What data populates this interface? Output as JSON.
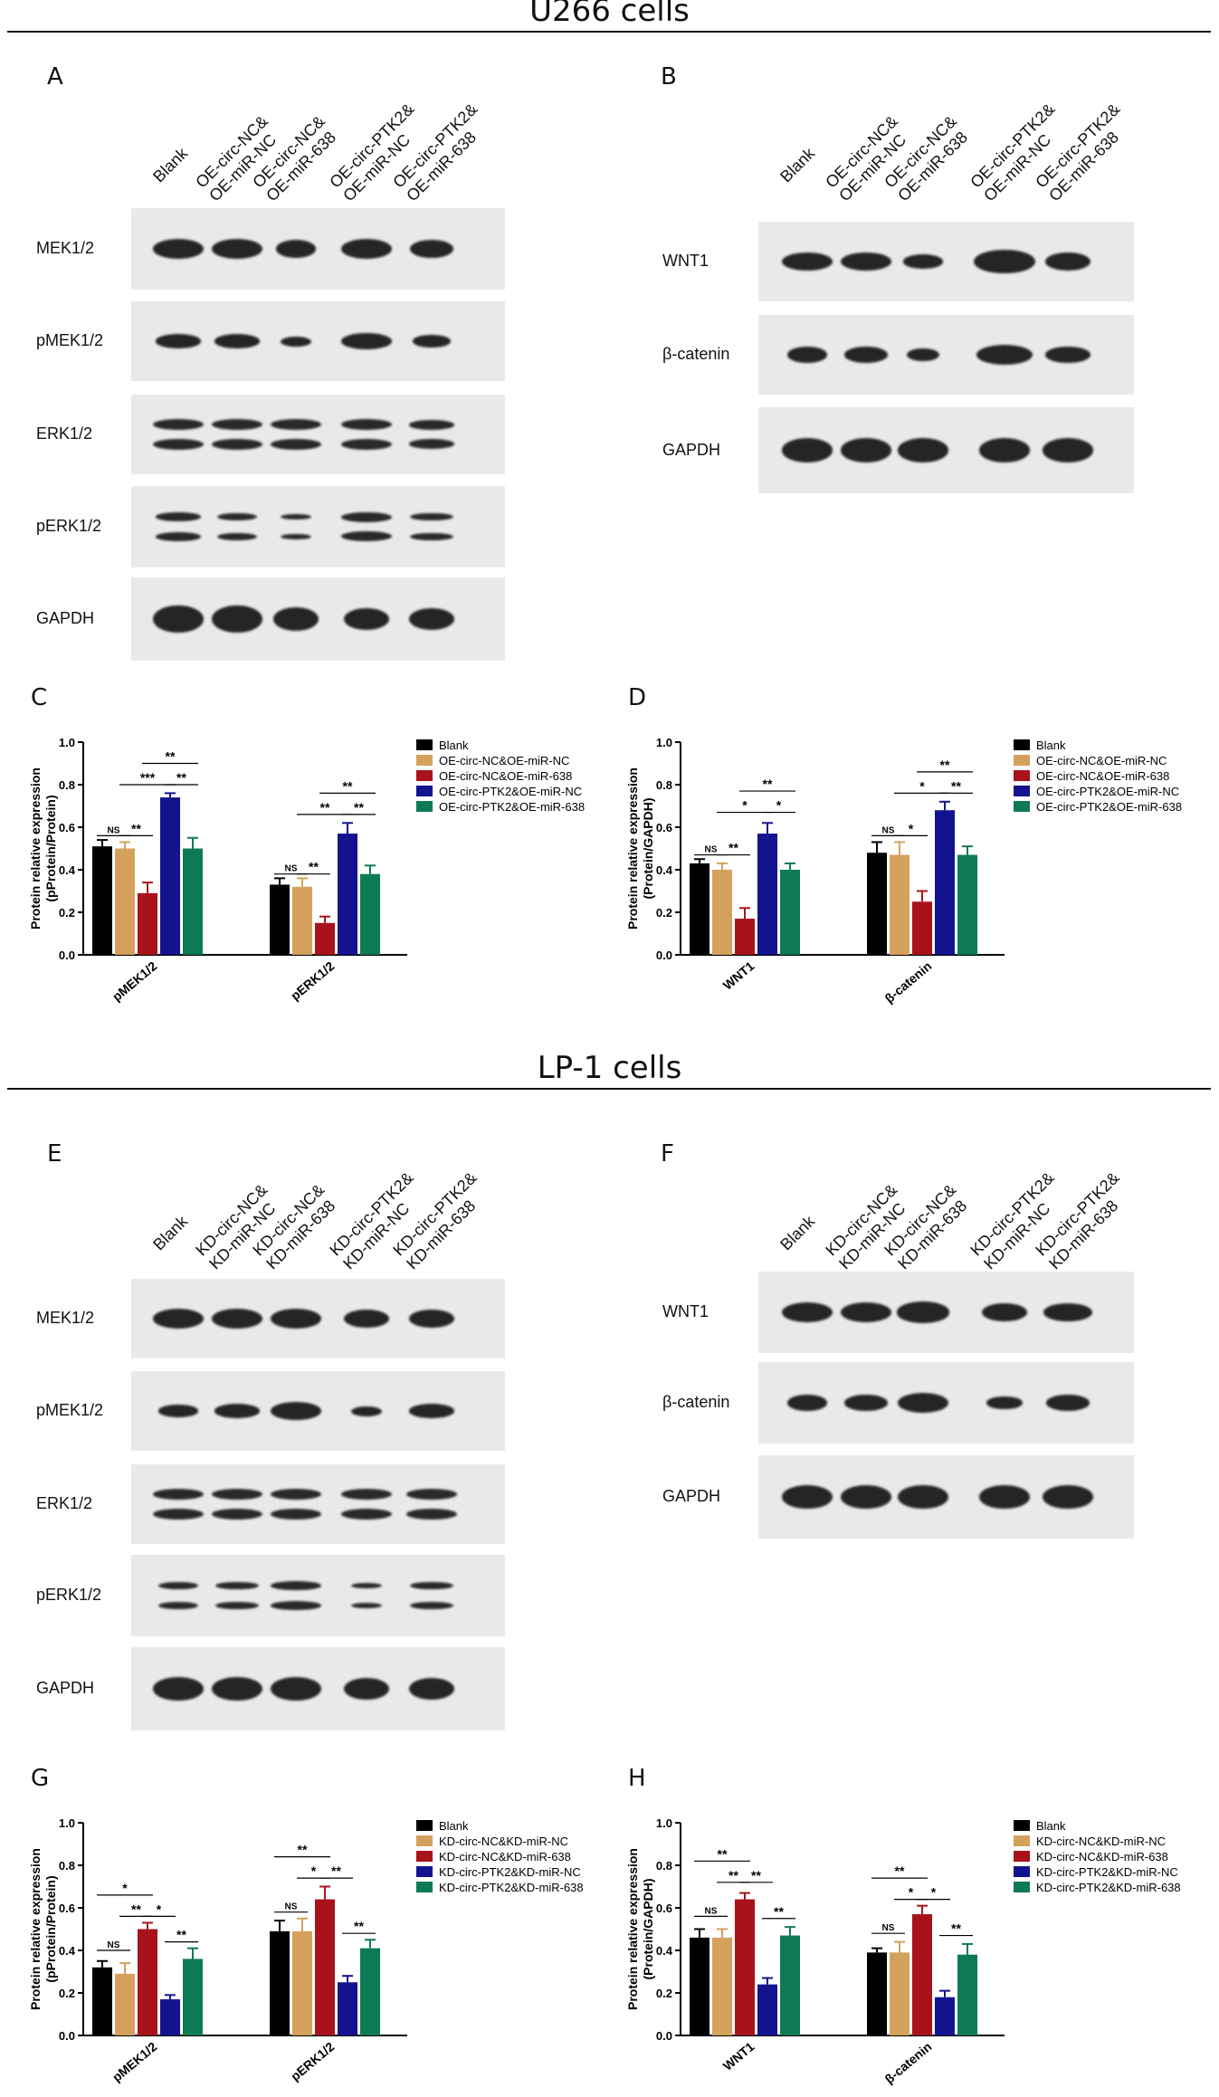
{
  "sections": [
    {
      "title": "U266 cells"
    },
    {
      "title": "LP-1 cells"
    }
  ],
  "panels": {
    "A": {
      "letter": "A",
      "lanes": [
        "Blank",
        "OE-circ-NC&\nOE-miR-NC",
        "OE-circ-NC&\nOE-miR-638",
        "OE-circ-PTK2&\nOE-miR-NC",
        "OE-circ-PTK2&\nOE-miR-638"
      ],
      "rows": [
        "MEK1/2",
        "pMEK1/2",
        "ERK1/2",
        "pERK1/2",
        "GAPDH"
      ]
    },
    "B": {
      "letter": "B",
      "lanes": [
        "Blank",
        "OE-circ-NC&\nOE-miR-NC",
        "OE-circ-NC&\nOE-miR-638",
        "OE-circ-PTK2&\nOE-miR-NC",
        "OE-circ-PTK2&\nOE-miR-638"
      ],
      "rows": [
        "WNT1",
        "β-catenin",
        "GAPDH"
      ]
    },
    "C": {
      "letter": "C"
    },
    "D": {
      "letter": "D"
    },
    "E": {
      "letter": "E",
      "lanes": [
        "Blank",
        "KD-circ-NC&\nKD-miR-NC",
        "KD-circ-NC&\nKD-miR-638",
        "KD-circ-PTK2&\nKD-miR-NC",
        "KD-circ-PTK2&\nKD-miR-638"
      ],
      "rows": [
        "MEK1/2",
        "pMEK1/2",
        "ERK1/2",
        "pERK1/2",
        "GAPDH"
      ]
    },
    "F": {
      "letter": "F",
      "lanes": [
        "Blank",
        "KD-circ-NC&\nKD-miR-NC",
        "KD-circ-NC&\nKD-miR-638",
        "KD-circ-PTK2&\nKD-miR-NC",
        "KD-circ-PTK2&\nKD-miR-638"
      ],
      "rows": [
        "WNT1",
        "β-catenin",
        "GAPDH"
      ]
    },
    "G": {
      "letter": "G"
    },
    "H": {
      "letter": "H"
    }
  },
  "colors": {
    "blank": "#000000",
    "nc_nc": "#d4a15c",
    "nc_638": "#a8131b",
    "ptk2_nc": "#14138f",
    "ptk2_638": "#0d7a55"
  },
  "chart_data": [
    {
      "id": "C",
      "type": "bar",
      "categories": [
        "pMEK1/2",
        "pERK1/2"
      ],
      "ylabel": "Protein relative expression\n(pProtein/Protein)",
      "ylim": [
        0,
        1.0
      ],
      "yticks": [
        "0.0",
        "0.2",
        "0.4",
        "0.6",
        "0.8",
        "1.0"
      ],
      "legend_position": "right",
      "series": [
        {
          "name": "Blank",
          "values": [
            0.51,
            0.33
          ],
          "errors": [
            0.03,
            0.03
          ]
        },
        {
          "name": "OE-circ-NC&OE-miR-NC",
          "values": [
            0.5,
            0.32
          ],
          "errors": [
            0.03,
            0.04
          ]
        },
        {
          "name": "OE-circ-NC&OE-miR-638",
          "values": [
            0.29,
            0.15
          ],
          "errors": [
            0.05,
            0.03
          ]
        },
        {
          "name": "OE-circ-PTK2&OE-miR-NC",
          "values": [
            0.74,
            0.57
          ],
          "errors": [
            0.02,
            0.05
          ]
        },
        {
          "name": "OE-circ-PTK2&OE-miR-638",
          "values": [
            0.5,
            0.38
          ],
          "errors": [
            0.05,
            0.04
          ]
        }
      ],
      "annotations": [
        {
          "group": 0,
          "from": 0,
          "to": 1,
          "label": "NS",
          "y": 0.56
        },
        {
          "group": 0,
          "from": 1,
          "to": 2,
          "label": "**",
          "y": 0.56
        },
        {
          "group": 0,
          "from": 1,
          "to": 3,
          "label": "***",
          "y": 0.8
        },
        {
          "group": 0,
          "from": 3,
          "to": 4,
          "label": "**",
          "y": 0.8
        },
        {
          "group": 0,
          "from": 2,
          "to": 4,
          "label": "**",
          "y": 0.9
        },
        {
          "group": 1,
          "from": 0,
          "to": 1,
          "label": "NS",
          "y": 0.38
        },
        {
          "group": 1,
          "from": 1,
          "to": 2,
          "label": "**",
          "y": 0.38
        },
        {
          "group": 1,
          "from": 1,
          "to": 3,
          "label": "**",
          "y": 0.66
        },
        {
          "group": 1,
          "from": 3,
          "to": 4,
          "label": "**",
          "y": 0.66
        },
        {
          "group": 1,
          "from": 2,
          "to": 4,
          "label": "**",
          "y": 0.76
        }
      ]
    },
    {
      "id": "D",
      "type": "bar",
      "categories": [
        "WNT1",
        "β-catenin"
      ],
      "ylabel": "Protein relative expression\n(Protein/GAPDH)",
      "ylim": [
        0,
        1.0
      ],
      "yticks": [
        "0.0",
        "0.2",
        "0.4",
        "0.6",
        "0.8",
        "1.0"
      ],
      "legend_position": "right",
      "series": [
        {
          "name": "Blank",
          "values": [
            0.43,
            0.48
          ],
          "errors": [
            0.02,
            0.05
          ]
        },
        {
          "name": "OE-circ-NC&OE-miR-NC",
          "values": [
            0.4,
            0.47
          ],
          "errors": [
            0.03,
            0.06
          ]
        },
        {
          "name": "OE-circ-NC&OE-miR-638",
          "values": [
            0.17,
            0.25
          ],
          "errors": [
            0.05,
            0.05
          ]
        },
        {
          "name": "OE-circ-PTK2&OE-miR-NC",
          "values": [
            0.57,
            0.68
          ],
          "errors": [
            0.05,
            0.04
          ]
        },
        {
          "name": "OE-circ-PTK2&OE-miR-638",
          "values": [
            0.4,
            0.47
          ],
          "errors": [
            0.03,
            0.04
          ]
        }
      ],
      "annotations": [
        {
          "group": 0,
          "from": 0,
          "to": 1,
          "label": "NS",
          "y": 0.47
        },
        {
          "group": 0,
          "from": 1,
          "to": 2,
          "label": "**",
          "y": 0.47
        },
        {
          "group": 0,
          "from": 1,
          "to": 3,
          "label": "*",
          "y": 0.67
        },
        {
          "group": 0,
          "from": 3,
          "to": 4,
          "label": "*",
          "y": 0.67
        },
        {
          "group": 0,
          "from": 2,
          "to": 4,
          "label": "**",
          "y": 0.77
        },
        {
          "group": 1,
          "from": 0,
          "to": 1,
          "label": "NS",
          "y": 0.56
        },
        {
          "group": 1,
          "from": 1,
          "to": 2,
          "label": "*",
          "y": 0.56
        },
        {
          "group": 1,
          "from": 1,
          "to": 3,
          "label": "*",
          "y": 0.76
        },
        {
          "group": 1,
          "from": 3,
          "to": 4,
          "label": "**",
          "y": 0.76
        },
        {
          "group": 1,
          "from": 2,
          "to": 4,
          "label": "**",
          "y": 0.86
        }
      ]
    },
    {
      "id": "G",
      "type": "bar",
      "categories": [
        "pMEK1/2",
        "pERK1/2"
      ],
      "ylabel": "Protein relative expression\n(pProtein/Protein)",
      "ylim": [
        0,
        1.0
      ],
      "yticks": [
        "0.0",
        "0.2",
        "0.4",
        "0.6",
        "0.8",
        "1.0"
      ],
      "legend_position": "right",
      "series": [
        {
          "name": "Blank",
          "values": [
            0.32,
            0.49
          ],
          "errors": [
            0.03,
            0.05
          ]
        },
        {
          "name": "KD-circ-NC&KD-miR-NC",
          "values": [
            0.29,
            0.49
          ],
          "errors": [
            0.05,
            0.06
          ]
        },
        {
          "name": "KD-circ-NC&KD-miR-638",
          "values": [
            0.5,
            0.64
          ],
          "errors": [
            0.03,
            0.06
          ]
        },
        {
          "name": "KD-circ-PTK2&KD-miR-NC",
          "values": [
            0.17,
            0.25
          ],
          "errors": [
            0.02,
            0.03
          ]
        },
        {
          "name": "KD-circ-PTK2&KD-miR-638",
          "values": [
            0.36,
            0.41
          ],
          "errors": [
            0.05,
            0.04
          ]
        }
      ],
      "annotations": [
        {
          "group": 0,
          "from": 0,
          "to": 1,
          "label": "NS",
          "y": 0.4
        },
        {
          "group": 0,
          "from": 1,
          "to": 2,
          "label": "**",
          "y": 0.56
        },
        {
          "group": 0,
          "from": 2,
          "to": 3,
          "label": "*",
          "y": 0.56
        },
        {
          "group": 0,
          "from": 3,
          "to": 4,
          "label": "**",
          "y": 0.44
        },
        {
          "group": 0,
          "from": 0,
          "to": 2,
          "label": "*",
          "y": 0.66
        },
        {
          "group": 1,
          "from": 0,
          "to": 1,
          "label": "NS",
          "y": 0.58
        },
        {
          "group": 1,
          "from": 1,
          "to": 2,
          "label": "*",
          "y": 0.74
        },
        {
          "group": 1,
          "from": 2,
          "to": 3,
          "label": "**",
          "y": 0.74
        },
        {
          "group": 1,
          "from": 3,
          "to": 4,
          "label": "**",
          "y": 0.48
        },
        {
          "group": 1,
          "from": 0,
          "to": 2,
          "label": "**",
          "y": 0.84
        }
      ]
    },
    {
      "id": "H",
      "type": "bar",
      "categories": [
        "WNT1",
        "β-catenin"
      ],
      "ylabel": "Protein relative expression\n(Protein/GAPDH)",
      "ylim": [
        0,
        1.0
      ],
      "yticks": [
        "0.0",
        "0.2",
        "0.4",
        "0.6",
        "0.8",
        "1.0"
      ],
      "legend_position": "right",
      "series": [
        {
          "name": "Blank",
          "values": [
            0.46,
            0.39
          ],
          "errors": [
            0.04,
            0.02
          ]
        },
        {
          "name": "KD-circ-NC&KD-miR-NC",
          "values": [
            0.46,
            0.39
          ],
          "errors": [
            0.04,
            0.05
          ]
        },
        {
          "name": "KD-circ-NC&KD-miR-638",
          "values": [
            0.64,
            0.57
          ],
          "errors": [
            0.03,
            0.04
          ]
        },
        {
          "name": "KD-circ-PTK2&KD-miR-NC",
          "values": [
            0.24,
            0.18
          ],
          "errors": [
            0.03,
            0.03
          ]
        },
        {
          "name": "KD-circ-PTK2&KD-miR-638",
          "values": [
            0.47,
            0.38
          ],
          "errors": [
            0.04,
            0.05
          ]
        }
      ],
      "annotations": [
        {
          "group": 0,
          "from": 0,
          "to": 1,
          "label": "NS",
          "y": 0.56
        },
        {
          "group": 0,
          "from": 1,
          "to": 2,
          "label": "**",
          "y": 0.72
        },
        {
          "group": 0,
          "from": 2,
          "to": 3,
          "label": "**",
          "y": 0.72
        },
        {
          "group": 0,
          "from": 3,
          "to": 4,
          "label": "**",
          "y": 0.55
        },
        {
          "group": 0,
          "from": 0,
          "to": 2,
          "label": "**",
          "y": 0.82
        },
        {
          "group": 1,
          "from": 0,
          "to": 1,
          "label": "NS",
          "y": 0.48
        },
        {
          "group": 1,
          "from": 1,
          "to": 2,
          "label": "*",
          "y": 0.64
        },
        {
          "group": 1,
          "from": 2,
          "to": 3,
          "label": "*",
          "y": 0.64
        },
        {
          "group": 1,
          "from": 3,
          "to": 4,
          "label": "**",
          "y": 0.47
        },
        {
          "group": 1,
          "from": 0,
          "to": 2,
          "label": "**",
          "y": 0.74
        }
      ]
    }
  ]
}
